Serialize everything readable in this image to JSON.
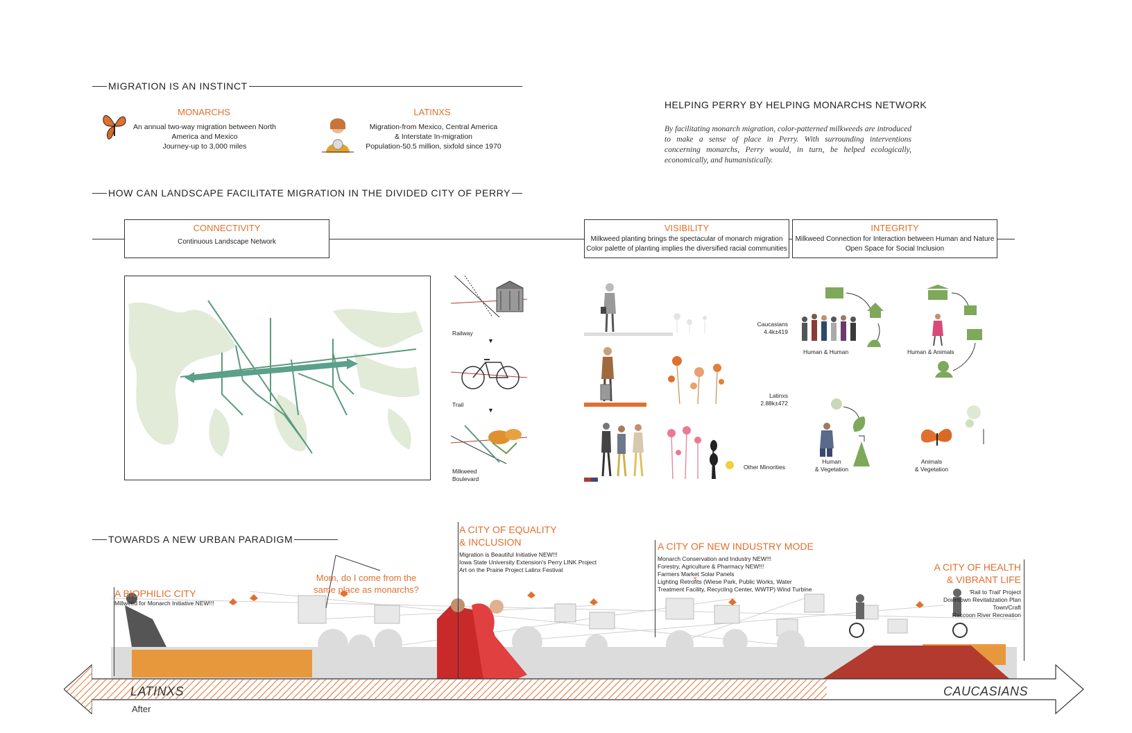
{
  "headings": {
    "instinct": "MIGRATION IS AN INSTINCT",
    "question": "HOW CAN LANDSCAPE FACILITATE MIGRATION IN THE DIVIDED CITY OF PERRY",
    "paradigm": "TOWARDS A NEW URBAN PARADIGM"
  },
  "monarchs": {
    "title": "MONARCHS",
    "lines": [
      "An annual two-way migration between North",
      "America and Mexico",
      "Journey-up to 3,000 miles"
    ]
  },
  "latinxs": {
    "title": "LATINXS",
    "lines": [
      "Migration-from Mexico, Central America",
      "& Interstate In-migration",
      "Population-50.5 million, sixfold since 1970"
    ]
  },
  "network": {
    "title": "HELPING PERRY BY HELPING MONARCHS NETWORK",
    "text": "By facilitating monarch migration, color-patterned milkweeds are introduced to make a sense of place in Perry. With surrounding interventions concerning monarchs, Perry would, in turn, be helped ecologically, economically, and humanistically."
  },
  "boxes": {
    "connectivity": {
      "title": "CONNECTIVITY",
      "line1": "Continuous Landscape Network"
    },
    "visibility": {
      "title": "VISIBILITY",
      "line1": "Milkweed planting brings the spectacular of monarch migration",
      "line2": "Color palette of planting implies the diversified racial communities"
    },
    "integrity": {
      "title": "INTEGRITY",
      "line1": "Milkweed Connection for Interaction between Human and Nature",
      "line2": "Open Space for Social Inclusion"
    }
  },
  "sequence": {
    "railway": "Railway",
    "trail": "Trail",
    "milkweed1": "Milkweed",
    "milkweed2": "Boulevard"
  },
  "populations": {
    "caucasians_label": "Caucasians",
    "caucasians_value": "4.4k±419",
    "latinxs_label": "Latinxs",
    "latinxs_value": "2.88k±472",
    "minorities_label": "Other Minorities"
  },
  "interactions": {
    "hh": "Human & Human",
    "ha": "Human & Animals",
    "hv1": "Human",
    "hv2": "& Vegetation",
    "av1": "Animals",
    "av2": "& Vegetation"
  },
  "timeline": {
    "left_label": "LATINXS",
    "after": "After",
    "right_label": "CAUCASIANS",
    "quote1": "Mom, do I come from the",
    "quote2": "same place as monarchs?",
    "biophilic": {
      "title": "A BIOPHILIC CITY",
      "items": [
        "Millweed for Monarch Initiative    NEW!!!"
      ]
    },
    "equality": {
      "title1": "A CITY OF EQUALITY",
      "title2": "& INCLUSION",
      "items": [
        "Migration is Beautiful Initiative    NEW!!!",
        "Iowa State University Extension's Perry LINK Project",
        "Art on the Prairie Project    Latinx Festival"
      ]
    },
    "industry": {
      "title": "A CITY OF NEW INDUSTRY MODE",
      "items": [
        "Monarch Conservation and Industry    NEW!!!",
        "Forestry, Agriculture & Pharmacy    NEW!!!",
        "Farmers Market Solar Panels",
        "Lighting Retrofits (Wiese Park, Public Works, Water",
        "Treatment Facility, Recycling Center, WWTP)    Wind Turbine"
      ]
    },
    "health": {
      "title1": "A CITY OF HEALTH",
      "title2": "& VIBRANT LIFE",
      "items": [
        "'Rail to Trail' Project",
        "Downtown Revitalization Plan",
        "Town/Craft",
        "Raccoon River Recreation"
      ]
    }
  },
  "colors": {
    "accent": "#e0702e",
    "green": "#7ea85a",
    "teal": "#4f9a86",
    "red": "#b23a2e"
  }
}
